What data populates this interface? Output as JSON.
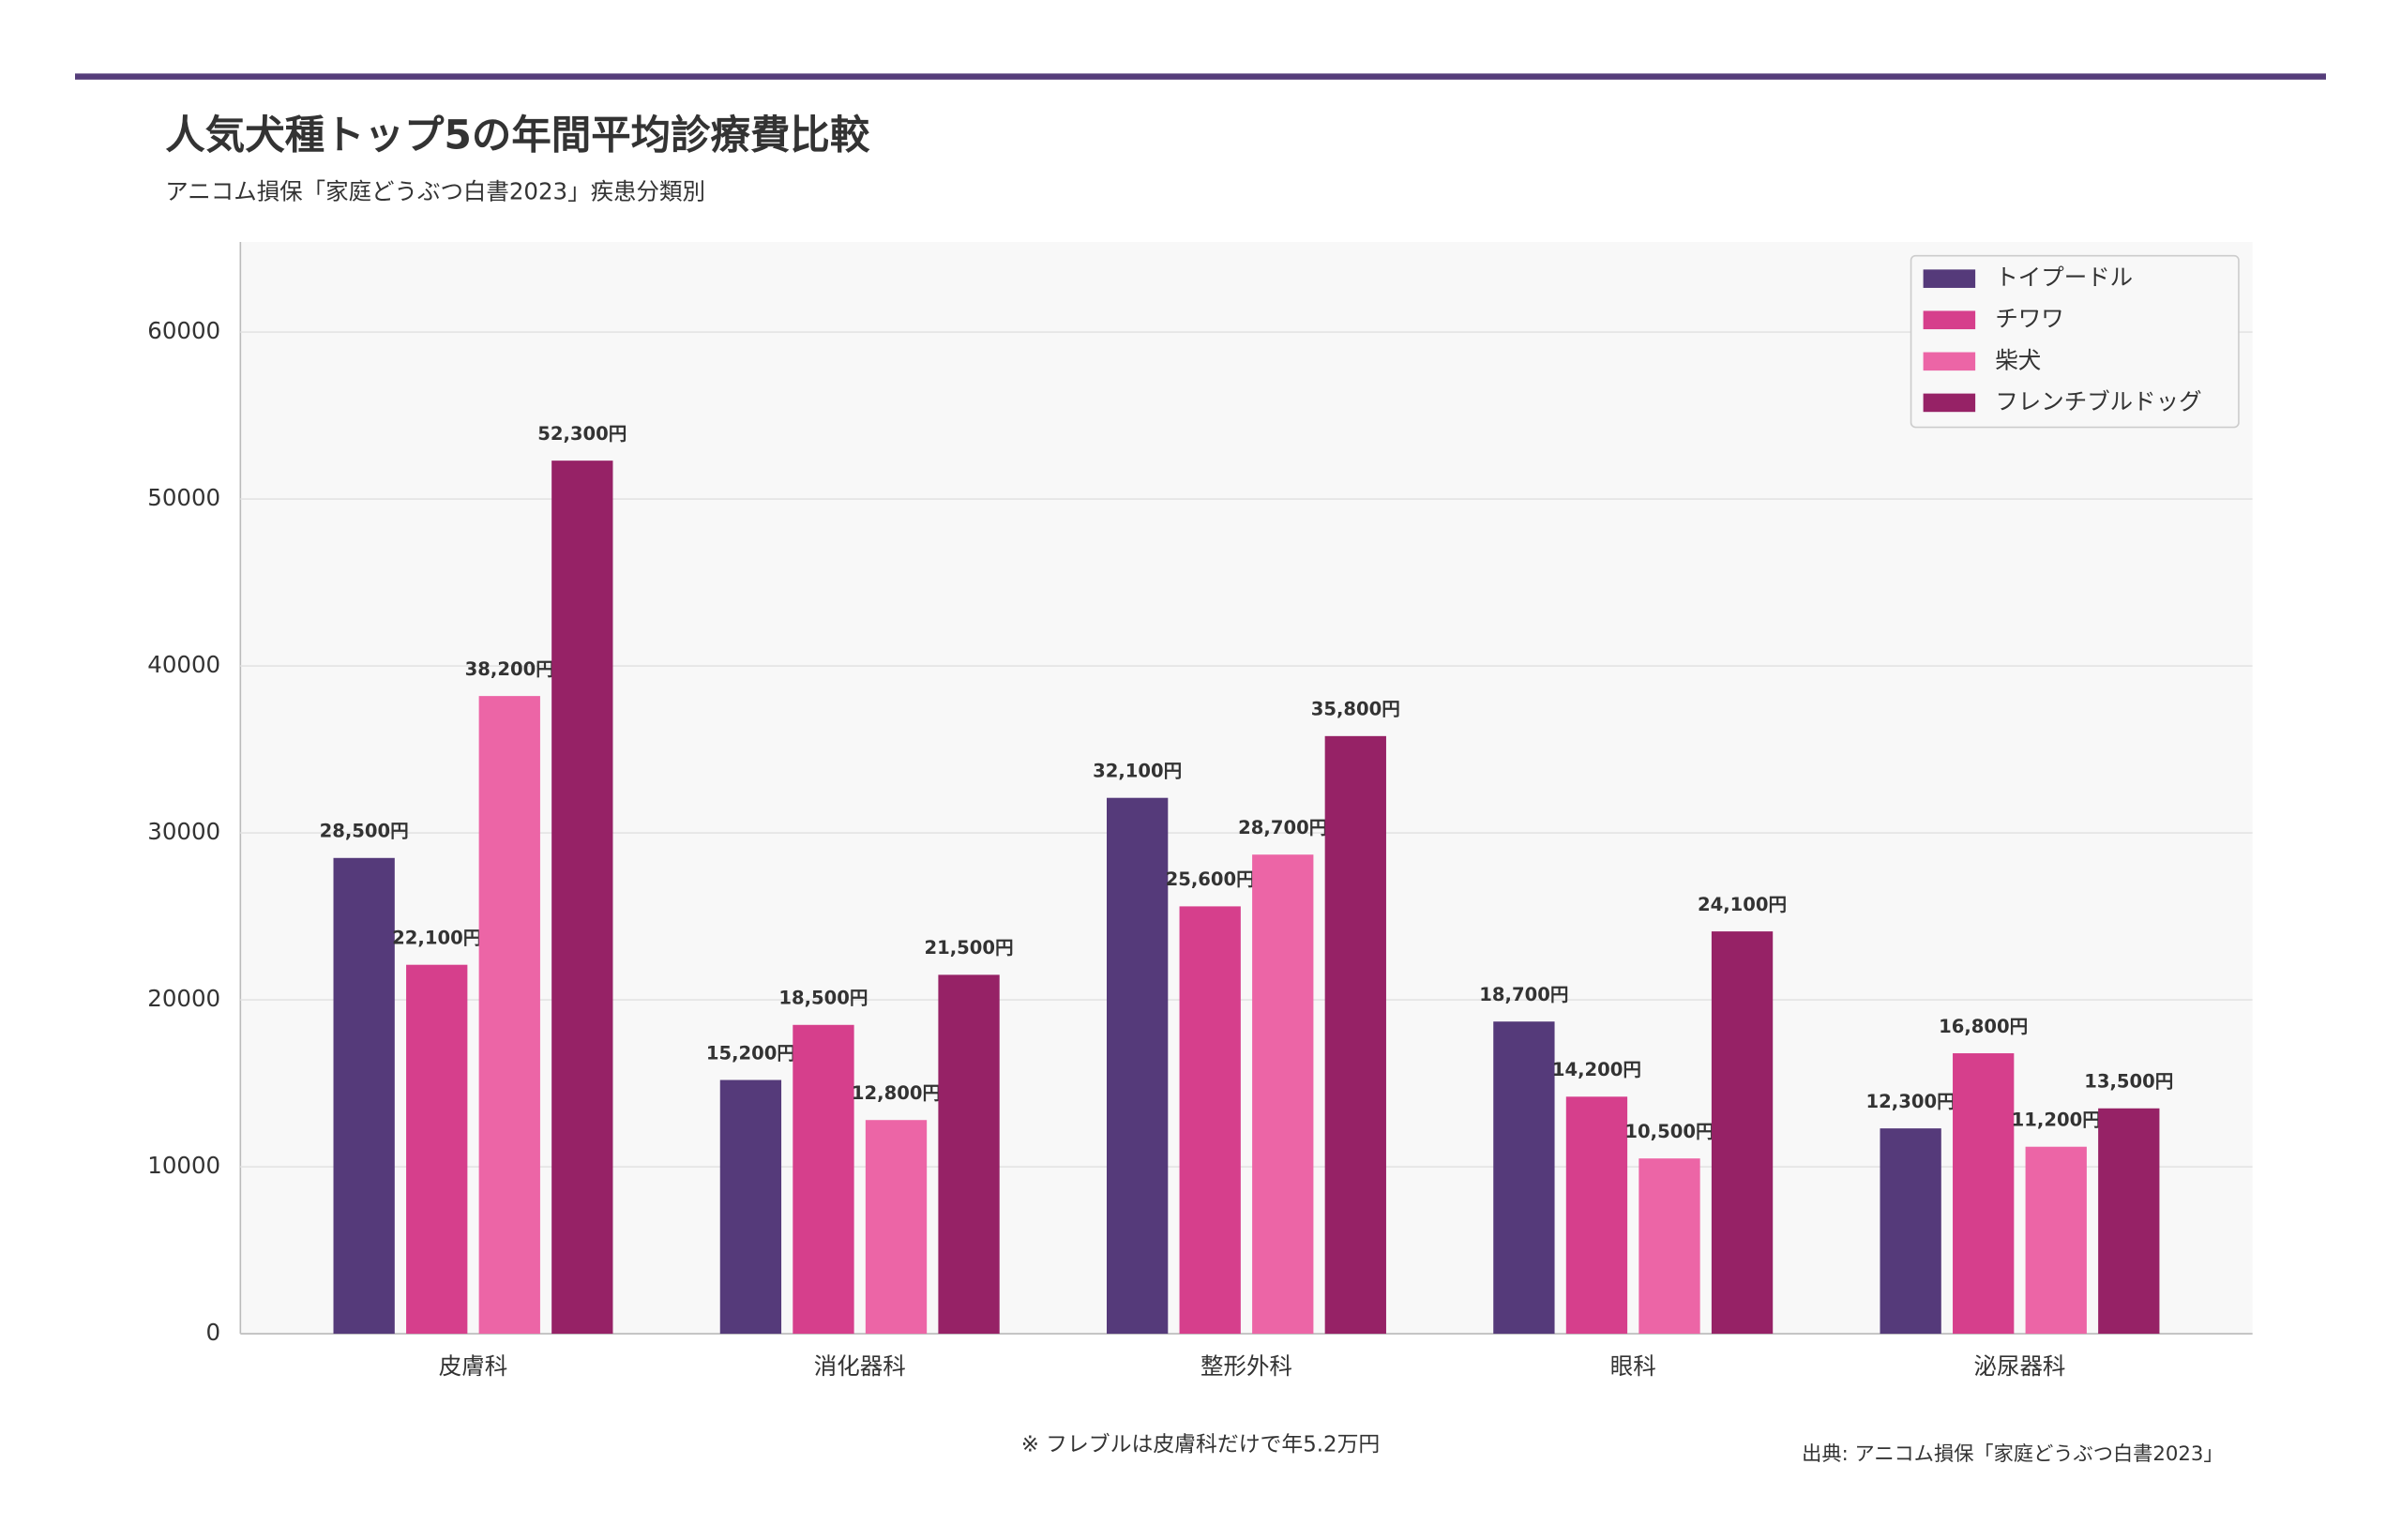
{
  "chart_data": {
    "type": "bar",
    "title": "人気犬種トップ5の年間平均診療費比較",
    "subtitle": "アニコム損保「家庭どうぶつ白書2023」疾患分類別",
    "categories": [
      "皮膚科",
      "消化器科",
      "整形外科",
      "眼科",
      "泌尿器科"
    ],
    "series": [
      {
        "name": "トイプードル",
        "color": "#553a7a",
        "values": [
          28500,
          15200,
          32100,
          18700,
          12300
        ],
        "value_labels": [
          "28,500円",
          "15,200円",
          "32,100円",
          "18,700円",
          "12,300円"
        ]
      },
      {
        "name": "チワワ",
        "color": "#d63f8c",
        "values": [
          22100,
          18500,
          25600,
          14200,
          16800
        ],
        "value_labels": [
          "22,100円",
          "18,500円",
          "25,600円",
          "14,200円",
          "16,800円"
        ]
      },
      {
        "name": "柴犬",
        "color": "#ec65a6",
        "values": [
          38200,
          12800,
          28700,
          10500,
          11200
        ],
        "value_labels": [
          "38,200円",
          "12,800円",
          "28,700円",
          "10,500円",
          "11,200円"
        ]
      },
      {
        "name": "フレンチブルドッグ",
        "color": "#962266",
        "values": [
          52300,
          21500,
          35800,
          24100,
          13500
        ],
        "value_labels": [
          "52,300円",
          "21,500円",
          "35,800円",
          "24,100円",
          "13,500円"
        ]
      }
    ],
    "ylim": [
      0,
      65400
    ],
    "yticks": [
      0,
      10000,
      20000,
      30000,
      40000,
      50000,
      60000
    ],
    "grid": true,
    "legend": "upper right",
    "annotations": [
      "※ フレブルは皮膚科だけで年5.2万円",
      "出典: アニコム損保「家庭どうぶつ白書2023」"
    ]
  }
}
